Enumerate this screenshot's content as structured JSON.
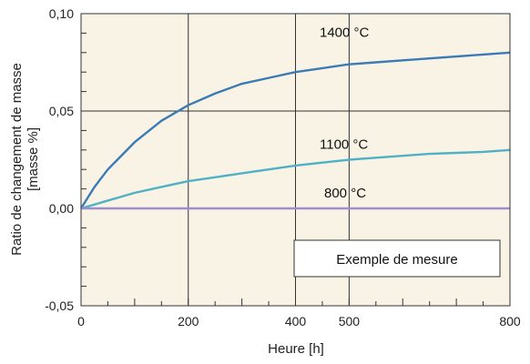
{
  "chart_data": {
    "type": "line",
    "xlabel": "Heure [h]",
    "ylabel_line1": "Ratio de changement de masse",
    "ylabel_line2": "[masse %]",
    "xlim": [
      0,
      800
    ],
    "ylim": [
      -0.05,
      0.1
    ],
    "x_ticks": [
      0,
      200,
      400,
      500,
      800
    ],
    "x_tick_labels": [
      "0",
      "200",
      "400",
      "500",
      "800"
    ],
    "y_ticks": [
      -0.05,
      0.0,
      0.05,
      0.1
    ],
    "y_tick_labels": [
      "-0,05",
      "0,00",
      "0,05",
      "0,10"
    ],
    "grid": true,
    "annotation_box": "Exemple de mesure",
    "series": [
      {
        "name": "1400 °C",
        "color": "#3a7bb5",
        "x": [
          0,
          25,
          50,
          100,
          150,
          200,
          250,
          300,
          350,
          400,
          450,
          500,
          550,
          600,
          650,
          700,
          750,
          800
        ],
        "y": [
          0.0,
          0.011,
          0.02,
          0.034,
          0.045,
          0.053,
          0.059,
          0.064,
          0.067,
          0.07,
          0.072,
          0.074,
          0.075,
          0.076,
          0.077,
          0.078,
          0.079,
          0.08
        ]
      },
      {
        "name": "1100 °C",
        "color": "#4fb0c6",
        "x": [
          0,
          25,
          50,
          100,
          150,
          200,
          250,
          300,
          350,
          400,
          450,
          500,
          550,
          600,
          650,
          700,
          750,
          800
        ],
        "y": [
          0.0,
          0.002,
          0.004,
          0.008,
          0.011,
          0.014,
          0.016,
          0.018,
          0.02,
          0.022,
          0.0235,
          0.025,
          0.026,
          0.027,
          0.028,
          0.0285,
          0.029,
          0.03
        ]
      },
      {
        "name": "800 °C",
        "color": "#9b8fd0",
        "x": [
          0,
          800
        ],
        "y": [
          0.0,
          0.0
        ]
      }
    ]
  },
  "colors": {
    "plot_background": "#f9f3e6",
    "grid": "#333333"
  }
}
